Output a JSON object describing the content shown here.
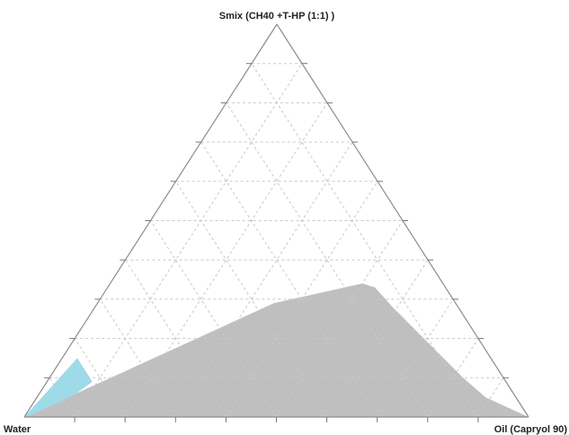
{
  "chart_data": {
    "type": "ternary",
    "title": "",
    "vertices": {
      "top": "Smix (CH40 +T-HP (1:1) )",
      "left": "Water",
      "right": "Oil (Capryol 90)"
    },
    "grid": true,
    "ticks_per_side": 10,
    "grid_color": "#c8c8c8",
    "axis_color": "#8c8c8c",
    "regions": [
      {
        "color": "#bfbfbf",
        "comment_points_as_fractions": "s = Smix fraction, o = oil fraction, water = 1 - s - o",
        "points": [
          {
            "s": 0.0,
            "o": 0.0
          },
          {
            "s": 0.14,
            "o": 0.17
          },
          {
            "s": 0.29,
            "o": 0.35
          },
          {
            "s": 0.34,
            "o": 0.5
          },
          {
            "s": 0.33,
            "o": 0.53
          },
          {
            "s": 0.28,
            "o": 0.59
          },
          {
            "s": 0.1,
            "o": 0.82
          },
          {
            "s": 0.05,
            "o": 0.89
          },
          {
            "s": 0.0,
            "o": 1.0
          }
        ]
      },
      {
        "color": "#9edbe9",
        "points": [
          {
            "s": 0.0,
            "o": 0.0
          },
          {
            "s": 0.15,
            "o": 0.03
          },
          {
            "s": 0.09,
            "o": 0.09
          },
          {
            "s": 0.055,
            "o": 0.07
          },
          {
            "s": 0.0,
            "o": 0.005
          }
        ]
      }
    ]
  }
}
